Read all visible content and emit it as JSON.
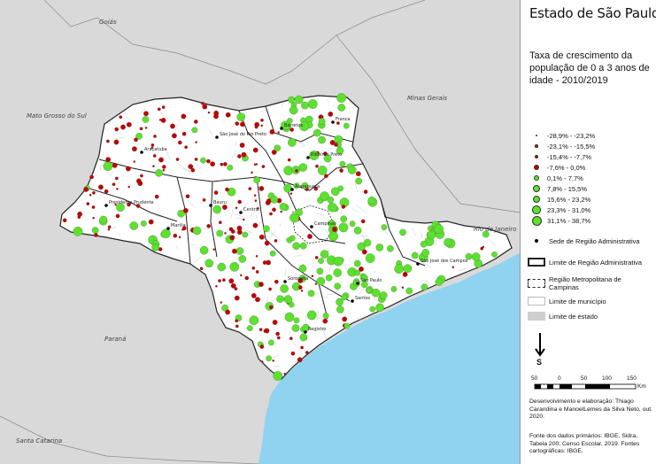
{
  "title": "Estado de São Paulo",
  "legend": {
    "subtitle": "Taxa de crescimento da população de 0 a 3 anos de idade - 2010/2019",
    "classes": [
      {
        "label": "-28,9% - -23,2%",
        "color": "#c00000",
        "radius": 1.2
      },
      {
        "label": "-23,1% - -15,5%",
        "color": "#c00000",
        "radius": 1.8
      },
      {
        "label": "-15,4% - -7,7%",
        "color": "#c00000",
        "radius": 2.3
      },
      {
        "label": "-7,6% - 0,0%",
        "color": "#c00000",
        "radius": 2.9
      },
      {
        "label": "0,1% - 7,7%",
        "color": "#5ce12e",
        "radius": 3.4
      },
      {
        "label": "7,8% - 15,5%",
        "color": "#5ce12e",
        "radius": 3.9
      },
      {
        "label": "15,6% - 23,2%",
        "color": "#5ce12e",
        "radius": 4.4
      },
      {
        "label": "23,3% - 31,0%",
        "color": "#5ce12e",
        "radius": 4.9
      },
      {
        "label": "31,1% - 38,7%",
        "color": "#5ce12e",
        "radius": 5.5
      }
    ],
    "sede_label": "Sede de Região Administrativa",
    "limite_ra": "Limite de Região Administrativa",
    "rm_campinas": "Região Metropolitana de Campinas",
    "limite_municipio": "Limite de município",
    "limite_estado": "Limite de estado"
  },
  "north_label": "S",
  "scale": {
    "ticks": [
      "50",
      "0",
      "50",
      "100",
      "150"
    ],
    "unit": "Km"
  },
  "credits": {
    "elaboracao": "Desenvolvimento e elaboração: Thiago Carandina e ManoelLemes da Silva Neto, out. 2020.",
    "fontes": "Fonte dos dados primários: IBGE, Sidra, Tabela 200;  Censo Escolar, 2019. Fontes cartográficas: IBGE."
  },
  "neighbors": [
    "Goiás",
    "Minas Gerais",
    "Mato Grosso do Sul",
    "Rio de Janeiro",
    "Paraná",
    "Santa Catarina"
  ],
  "cities": [
    "Franca",
    "Barretos",
    "Ribeirão Preto",
    "Araçatuba",
    "São José do Rio Preto",
    "Presidente Prudente",
    "Marília",
    "Bauru",
    "Araraquara",
    "Central",
    "Campinas",
    "Sorocaba",
    "São Paulo",
    "São José dos Campos",
    "Registro",
    "Santos"
  ],
  "colors": {
    "ocean": "#8fd3f0",
    "neighbor": "#d9d9d9",
    "state": "#ffffff",
    "negative": "#c00000",
    "positive": "#5ce12e"
  }
}
